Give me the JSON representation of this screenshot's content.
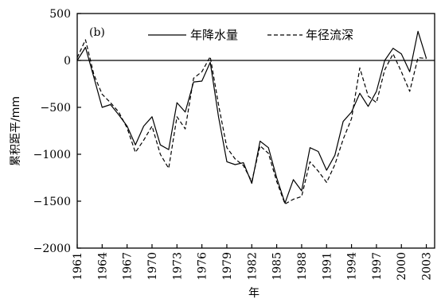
{
  "chart_data": {
    "type": "line",
    "panel_label": "(b)",
    "xlabel": "年",
    "ylabel": "累积距平/mm",
    "xlim": [
      1961,
      2004
    ],
    "ylim": [
      -2000,
      500
    ],
    "x_ticks": [
      1961,
      1964,
      1967,
      1970,
      1973,
      1976,
      1979,
      1982,
      1985,
      1988,
      1991,
      1994,
      1997,
      2000,
      2003
    ],
    "y_ticks": [
      500,
      0,
      -500,
      -1000,
      -1500,
      -2000
    ],
    "y_tick_labels": [
      "500",
      "0",
      "−500",
      "−1000",
      "−1500",
      "−2000"
    ],
    "zero_line": true,
    "grid": false,
    "legend_position": "top-right",
    "x": [
      1961,
      1962,
      1963,
      1964,
      1965,
      1966,
      1967,
      1968,
      1969,
      1970,
      1971,
      1972,
      1973,
      1974,
      1975,
      1976,
      1977,
      1978,
      1979,
      1980,
      1981,
      1982,
      1983,
      1984,
      1985,
      1986,
      1987,
      1988,
      1989,
      1990,
      1991,
      1992,
      1993,
      1994,
      1995,
      1996,
      1997,
      1998,
      1999,
      2000,
      2001,
      2002,
      2003
    ],
    "series": [
      {
        "name": "年降水量",
        "style": "solid",
        "color": "#000000",
        "values": [
          0,
          140,
          -180,
          -500,
          -470,
          -580,
          -700,
          -900,
          -700,
          -600,
          -900,
          -950,
          -450,
          -550,
          -230,
          -220,
          -20,
          -600,
          -1080,
          -1110,
          -1090,
          -1310,
          -860,
          -930,
          -1250,
          -1520,
          -1270,
          -1390,
          -930,
          -970,
          -1170,
          -1010,
          -650,
          -550,
          -350,
          -490,
          -330,
          0,
          130,
          70,
          -120,
          310,
          20
        ]
      },
      {
        "name": "年径流深",
        "style": "dashed",
        "color": "#000000",
        "values": [
          30,
          220,
          -150,
          -360,
          -450,
          -550,
          -720,
          -980,
          -850,
          -700,
          -1000,
          -1150,
          -600,
          -730,
          -190,
          -120,
          40,
          -470,
          -930,
          -1050,
          -1120,
          -1290,
          -910,
          -990,
          -1290,
          -1530,
          -1480,
          -1450,
          -1080,
          -1180,
          -1300,
          -1110,
          -840,
          -620,
          -80,
          -380,
          -450,
          -100,
          70,
          -120,
          -330,
          30,
          20
        ]
      }
    ]
  }
}
